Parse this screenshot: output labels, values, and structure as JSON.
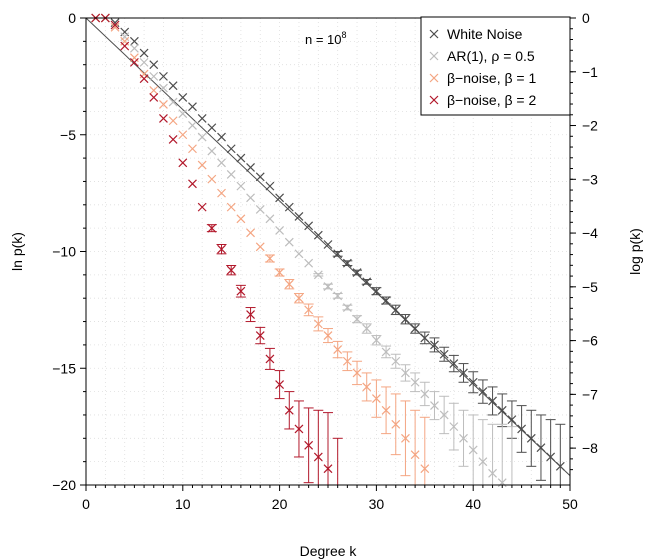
{
  "chart_data": {
    "type": "scatter",
    "xlabel": "Degree k",
    "ylabel_left": "ln p(k)",
    "ylabel_right": "log p(k)",
    "xlim": [
      0,
      50
    ],
    "ylim": [
      -20,
      0
    ],
    "right_axis_ticks": [
      0,
      -1,
      -2,
      -3,
      -4,
      -5,
      -6,
      -7,
      -8
    ],
    "x_ticks": [
      0,
      10,
      20,
      30,
      40,
      50
    ],
    "y_ticks": [
      0,
      -5,
      -10,
      -15,
      -20
    ],
    "grid": true,
    "legend_position": "top-right",
    "annotation": {
      "base": "n = 10",
      "exponent": "8"
    },
    "series": [
      {
        "name": "White Noise",
        "color": "#4d4d4d",
        "fit_line": [
          [
            0,
            0.0
          ],
          [
            50,
            -19.6
          ]
        ],
        "k": [
          1,
          2,
          3,
          4,
          5,
          6,
          7,
          8,
          9,
          10,
          11,
          12,
          13,
          14,
          15,
          16,
          17,
          18,
          19,
          20,
          21,
          22,
          23,
          24,
          25,
          26,
          27,
          28,
          29,
          30,
          31,
          32,
          33,
          34,
          35,
          36,
          37,
          38,
          39,
          40,
          41,
          42,
          43,
          44,
          45,
          46,
          47,
          48,
          49
        ],
        "ln_p": [
          0,
          0,
          -0.2,
          -0.6,
          -1.0,
          -1.5,
          -2.0,
          -2.5,
          -2.9,
          -3.4,
          -3.8,
          -4.3,
          -4.7,
          -5.1,
          -5.6,
          -6.0,
          -6.4,
          -6.8,
          -7.2,
          -7.7,
          -8.1,
          -8.5,
          -8.9,
          -9.3,
          -9.7,
          -10.1,
          -10.5,
          -10.9,
          -11.3,
          -11.7,
          -12.1,
          -12.5,
          -12.9,
          -13.3,
          -13.7,
          -14.0,
          -14.4,
          -14.8,
          -15.2,
          -15.6,
          -16.0,
          -16.4,
          -16.8,
          -17.2,
          -17.6,
          -18.0,
          -18.4,
          -18.8,
          -19.2
        ],
        "err": [
          0,
          0,
          0,
          0,
          0,
          0,
          0,
          0,
          0,
          0,
          0,
          0,
          0,
          0,
          0,
          0,
          0,
          0,
          0,
          0,
          0,
          0,
          0,
          0,
          0,
          0.1,
          0.1,
          0.1,
          0.1,
          0.15,
          0.15,
          0.2,
          0.2,
          0.2,
          0.25,
          0.3,
          0.3,
          0.35,
          0.4,
          0.45,
          0.5,
          0.6,
          0.7,
          0.8,
          1.0,
          1.2,
          1.4,
          1.6,
          1.8
        ]
      },
      {
        "name": "AR(1), ρ = 0.5",
        "color": "#bdbdbd",
        "k": [
          1,
          2,
          3,
          4,
          5,
          6,
          7,
          8,
          9,
          10,
          11,
          12,
          13,
          14,
          15,
          16,
          17,
          18,
          19,
          20,
          21,
          22,
          23,
          24,
          25,
          26,
          27,
          28,
          29,
          30,
          31,
          32,
          33,
          34,
          35,
          36,
          37,
          38,
          39,
          40,
          41,
          42,
          43,
          44
        ],
        "ln_p": [
          0,
          0,
          -0.3,
          -0.8,
          -1.3,
          -1.9,
          -2.5,
          -3.0,
          -3.6,
          -4.1,
          -4.6,
          -5.1,
          -5.7,
          -6.2,
          -6.7,
          -7.2,
          -7.7,
          -8.2,
          -8.6,
          -9.1,
          -9.6,
          -10.1,
          -10.5,
          -11.0,
          -11.5,
          -11.9,
          -12.4,
          -12.9,
          -13.3,
          -13.8,
          -14.3,
          -14.7,
          -15.2,
          -15.6,
          -16.1,
          -16.6,
          -17.0,
          -17.5,
          -18.0,
          -18.5,
          -19.0,
          -19.5,
          -19.9,
          -20.0
        ],
        "err": [
          0,
          0,
          0,
          0,
          0,
          0,
          0,
          0,
          0,
          0,
          0,
          0,
          0,
          0,
          0,
          0,
          0,
          0,
          0,
          0,
          0,
          0,
          0,
          0.05,
          0.1,
          0.1,
          0.1,
          0.15,
          0.2,
          0.2,
          0.25,
          0.3,
          0.35,
          0.4,
          0.5,
          0.6,
          0.8,
          1.0,
          1.2,
          1.5,
          1.8,
          2.1,
          2.5,
          2.5
        ]
      },
      {
        "name": "β−noise, β = 1",
        "color": "#f4a582",
        "k": [
          1,
          2,
          3,
          4,
          5,
          6,
          7,
          8,
          9,
          10,
          11,
          12,
          13,
          14,
          15,
          16,
          17,
          18,
          19,
          20,
          21,
          22,
          23,
          24,
          25,
          26,
          27,
          28,
          29,
          30,
          31,
          32,
          33,
          34,
          35
        ],
        "ln_p": [
          0,
          0,
          -0.4,
          -1.0,
          -1.7,
          -2.4,
          -3.1,
          -3.7,
          -4.4,
          -5.0,
          -5.6,
          -6.3,
          -6.9,
          -7.5,
          -8.1,
          -8.6,
          -9.2,
          -9.8,
          -10.3,
          -10.9,
          -11.4,
          -12.0,
          -12.5,
          -13.1,
          -13.6,
          -14.2,
          -14.7,
          -15.2,
          -15.8,
          -16.3,
          -16.8,
          -17.4,
          -18.0,
          -18.7,
          -19.3
        ],
        "err": [
          0,
          0,
          0,
          0,
          0,
          0,
          0,
          0,
          0,
          0,
          0,
          0,
          0,
          0,
          0,
          0,
          0,
          0,
          0.15,
          0.15,
          0.2,
          0.2,
          0.25,
          0.3,
          0.3,
          0.35,
          0.4,
          0.5,
          0.6,
          0.8,
          1.0,
          1.3,
          1.6,
          1.9,
          2.2
        ]
      },
      {
        "name": "β−noise, β = 2",
        "color": "#b2182b",
        "k": [
          1,
          2,
          3,
          4,
          5,
          6,
          7,
          8,
          9,
          10,
          11,
          12,
          13,
          14,
          15,
          16,
          17,
          18,
          19,
          20,
          21,
          22,
          23,
          24,
          25,
          26
        ],
        "ln_p": [
          0,
          0,
          -0.3,
          -1.2,
          -1.9,
          -2.6,
          -3.4,
          -4.3,
          -5.2,
          -6.2,
          -7.1,
          -8.1,
          -9.0,
          -9.9,
          -10.8,
          -11.7,
          -12.7,
          -13.6,
          -14.6,
          -15.7,
          -16.8,
          -17.6,
          -18.3,
          -18.8,
          -19.3,
          -20.0
        ],
        "err": [
          0,
          0,
          0,
          0,
          0,
          0,
          0,
          0,
          0,
          0,
          0,
          0,
          0.15,
          0.2,
          0.2,
          0.25,
          0.3,
          0.35,
          0.45,
          0.6,
          0.8,
          1.2,
          1.6,
          2.0,
          2.4,
          2.0
        ]
      }
    ]
  }
}
